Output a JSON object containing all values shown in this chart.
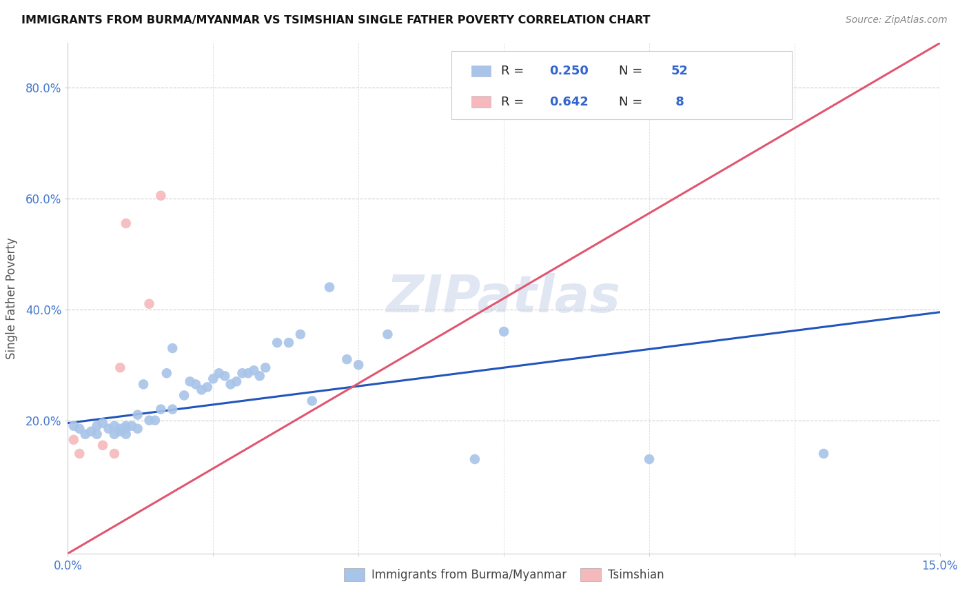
{
  "title": "IMMIGRANTS FROM BURMA/MYANMAR VS TSIMSHIAN SINGLE FATHER POVERTY CORRELATION CHART",
  "source": "Source: ZipAtlas.com",
  "ylabel": "Single Father Poverty",
  "legend_label1": "Immigrants from Burma/Myanmar",
  "legend_label2": "Tsimshian",
  "r1": 0.25,
  "n1": 52,
  "r2": 0.642,
  "n2": 8,
  "blue_color": "#a8c4e8",
  "pink_color": "#f5b8bc",
  "blue_line_color": "#2255bb",
  "pink_line_color": "#e05570",
  "watermark": "ZIPatlas",
  "xlim": [
    0.0,
    0.15
  ],
  "ylim": [
    -0.04,
    0.88
  ],
  "yticks": [
    0.2,
    0.4,
    0.6,
    0.8
  ],
  "ytick_labels": [
    "20.0%",
    "40.0%",
    "60.0%",
    "80.0%"
  ],
  "xtick_labels": [
    "0.0%",
    "15.0%"
  ],
  "blue_points_x": [
    0.001,
    0.002,
    0.003,
    0.004,
    0.005,
    0.005,
    0.006,
    0.007,
    0.008,
    0.008,
    0.009,
    0.009,
    0.01,
    0.01,
    0.01,
    0.011,
    0.012,
    0.012,
    0.013,
    0.014,
    0.015,
    0.016,
    0.017,
    0.018,
    0.018,
    0.02,
    0.021,
    0.022,
    0.023,
    0.024,
    0.025,
    0.026,
    0.027,
    0.028,
    0.029,
    0.03,
    0.031,
    0.032,
    0.033,
    0.034,
    0.036,
    0.038,
    0.04,
    0.042,
    0.045,
    0.048,
    0.05,
    0.055,
    0.07,
    0.075,
    0.1,
    0.13
  ],
  "blue_points_y": [
    0.19,
    0.185,
    0.175,
    0.18,
    0.19,
    0.175,
    0.195,
    0.185,
    0.19,
    0.175,
    0.18,
    0.185,
    0.19,
    0.185,
    0.175,
    0.19,
    0.21,
    0.185,
    0.265,
    0.2,
    0.2,
    0.22,
    0.285,
    0.22,
    0.33,
    0.245,
    0.27,
    0.265,
    0.255,
    0.26,
    0.275,
    0.285,
    0.28,
    0.265,
    0.27,
    0.285,
    0.285,
    0.29,
    0.28,
    0.295,
    0.34,
    0.34,
    0.355,
    0.235,
    0.44,
    0.31,
    0.3,
    0.355,
    0.13,
    0.36,
    0.13,
    0.14
  ],
  "pink_points_x": [
    0.001,
    0.002,
    0.006,
    0.008,
    0.009,
    0.01,
    0.014,
    0.016
  ],
  "pink_points_y": [
    0.165,
    0.14,
    0.155,
    0.14,
    0.295,
    0.555,
    0.41,
    0.605
  ],
  "blue_line_x": [
    0.0,
    0.15
  ],
  "blue_line_y": [
    0.195,
    0.395
  ],
  "pink_line_x": [
    0.0,
    0.15
  ],
  "pink_line_y": [
    -0.04,
    0.88
  ]
}
